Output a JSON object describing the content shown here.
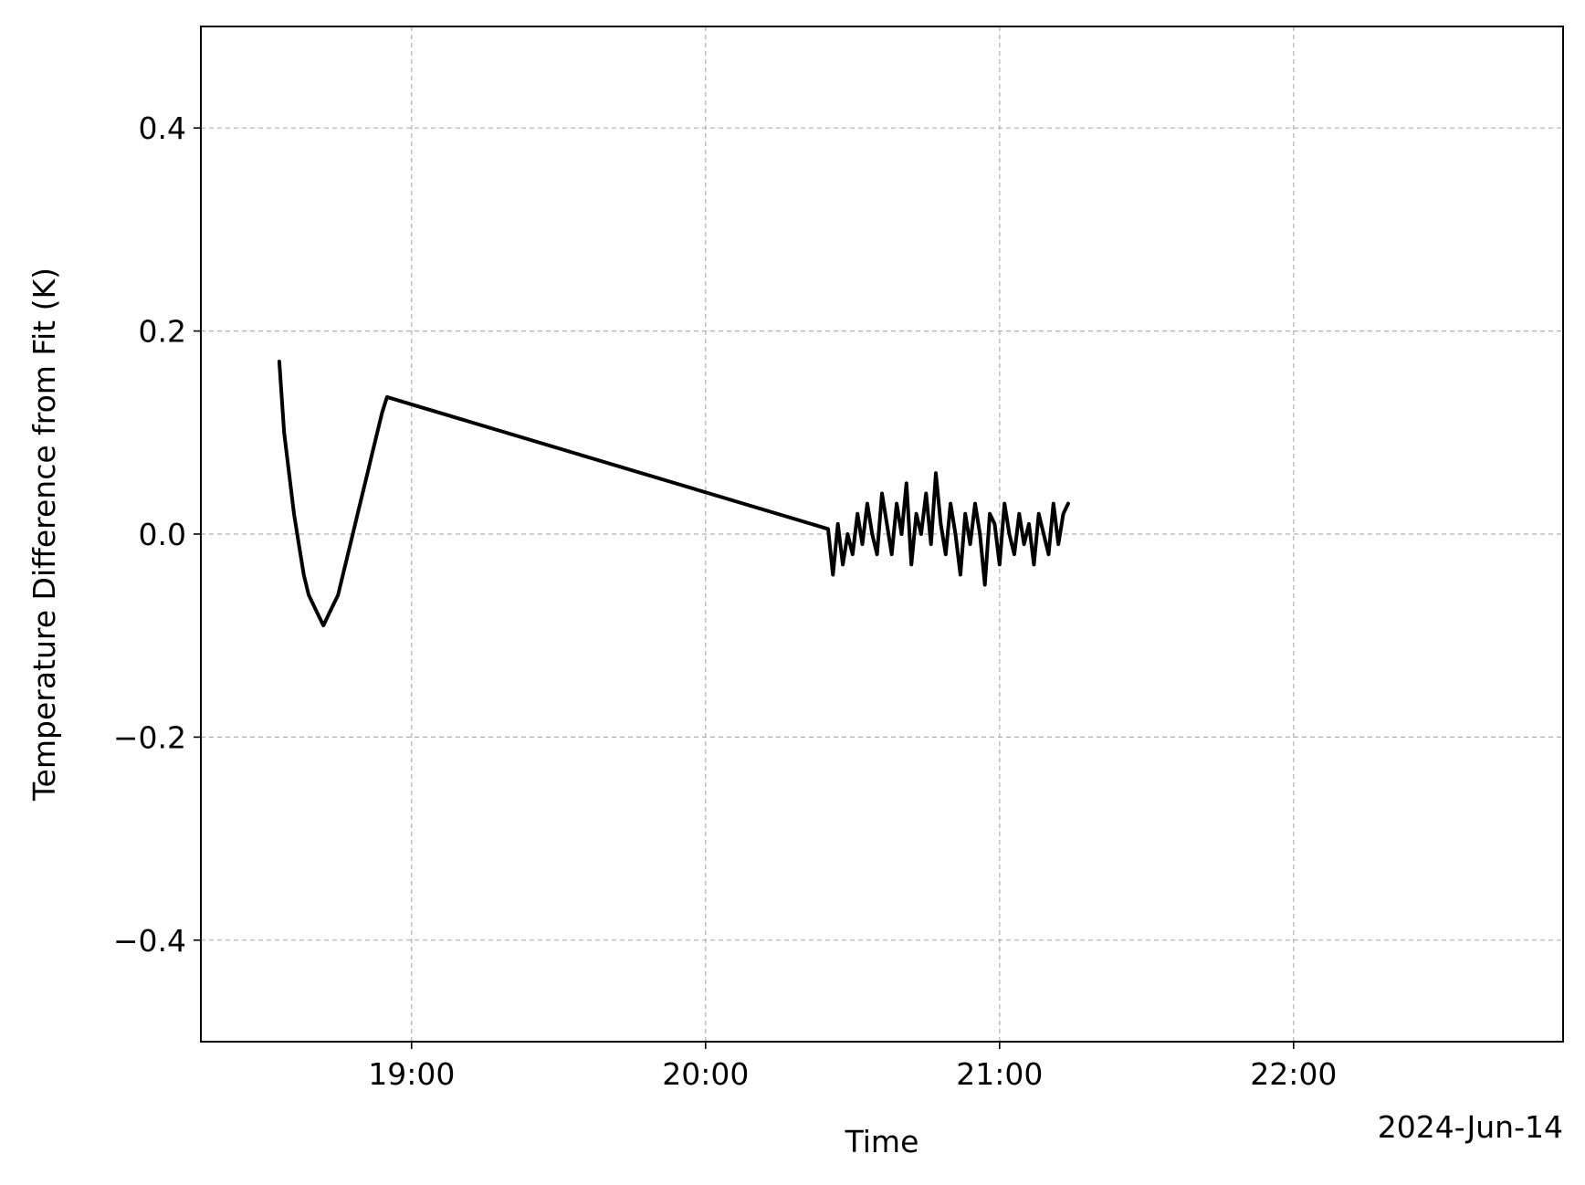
{
  "chart_data": {
    "type": "line",
    "title": "",
    "xlabel": "Time",
    "ylabel": "Temperature Difference from Fit (K)",
    "x_offset_label": "2024-Jun-14",
    "xlim": [
      "18:17",
      "22:55"
    ],
    "ylim": [
      -0.5,
      0.5
    ],
    "x_ticks": [
      "19:00",
      "20:00",
      "21:00",
      "22:00"
    ],
    "y_ticks": [
      0.4,
      0.2,
      0.0,
      -0.2,
      -0.4
    ],
    "y_tick_labels": [
      "0.4",
      "0.2",
      "0.0",
      "−0.2",
      "−0.4"
    ],
    "grid": true,
    "legend": "none",
    "series": [
      {
        "color": "#000000",
        "x": [
          "18:33",
          "18:34",
          "18:35",
          "18:36",
          "18:37",
          "18:38",
          "18:39",
          "18:40",
          "18:41",
          "18:42",
          "18:43",
          "18:44",
          "18:45",
          "18:46",
          "18:47",
          "18:48",
          "18:49",
          "18:50",
          "18:51",
          "18:52",
          "18:53",
          "18:54",
          "18:55",
          "20:25",
          "20:26",
          "20:27",
          "20:28",
          "20:29",
          "20:30",
          "20:31",
          "20:32",
          "20:33",
          "20:34",
          "20:35",
          "20:36",
          "20:37",
          "20:38",
          "20:39",
          "20:40",
          "20:41",
          "20:42",
          "20:43",
          "20:44",
          "20:45",
          "20:46",
          "20:47",
          "20:48",
          "20:49",
          "20:50",
          "20:51",
          "20:52",
          "20:53",
          "20:54",
          "20:55",
          "20:56",
          "20:57",
          "20:58",
          "20:59",
          "21:00",
          "21:01",
          "21:02",
          "21:03",
          "21:04",
          "21:05",
          "21:06",
          "21:07",
          "21:08",
          "21:09",
          "21:10",
          "21:11",
          "21:12",
          "21:13",
          "21:14"
        ],
        "y": [
          0.17,
          0.1,
          0.06,
          0.02,
          -0.01,
          -0.04,
          -0.06,
          -0.07,
          -0.08,
          -0.09,
          -0.08,
          -0.07,
          -0.06,
          -0.04,
          -0.02,
          0.0,
          0.02,
          0.04,
          0.06,
          0.08,
          0.1,
          0.12,
          0.135,
          0.005,
          -0.04,
          0.01,
          -0.03,
          0.0,
          -0.02,
          0.02,
          -0.01,
          0.03,
          0.0,
          -0.02,
          0.04,
          0.01,
          -0.02,
          0.03,
          0.0,
          0.05,
          -0.03,
          0.02,
          0.0,
          0.04,
          -0.01,
          0.06,
          0.01,
          -0.02,
          0.03,
          0.0,
          -0.04,
          0.02,
          -0.01,
          0.03,
          0.0,
          -0.05,
          0.02,
          0.01,
          -0.03,
          0.03,
          0.0,
          -0.02,
          0.02,
          -0.01,
          0.01,
          -0.03,
          0.02,
          0.0,
          -0.02,
          0.03,
          -0.01,
          0.02,
          0.03
        ]
      }
    ]
  }
}
